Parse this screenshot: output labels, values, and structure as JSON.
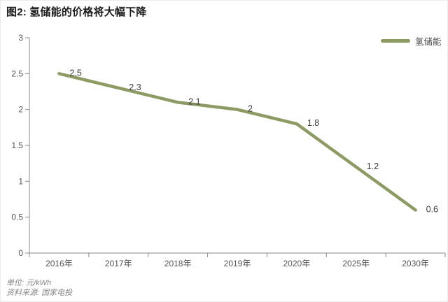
{
  "title": "图2: 氢储能的价格将大幅下降",
  "legend": {
    "label": "氢储能",
    "color": "#8c9a63"
  },
  "footnotes": {
    "unit": "单位: 元/kWh",
    "source": "资料来源: 国家电投"
  },
  "chart_data": {
    "type": "line",
    "title": "图2: 氢储能的价格将大幅下降",
    "categories": [
      "2016年",
      "2017年",
      "2018年",
      "2019年",
      "2020年",
      "2025年",
      "2030年"
    ],
    "series": [
      {
        "name": "氢储能",
        "values": [
          2.5,
          2.3,
          2.1,
          2,
          1.8,
          1.2,
          0.6
        ]
      }
    ],
    "xlabel": "",
    "ylabel": "",
    "unit": "元/kWh",
    "ylim": [
      0,
      3
    ],
    "yticks": [
      0,
      0.5,
      1,
      1.5,
      2,
      2.5,
      3
    ],
    "grid": false,
    "data_labels": true,
    "legend_position": "top-right",
    "line_color": "#8c9a63",
    "axis_color": "#8a8a8a"
  }
}
